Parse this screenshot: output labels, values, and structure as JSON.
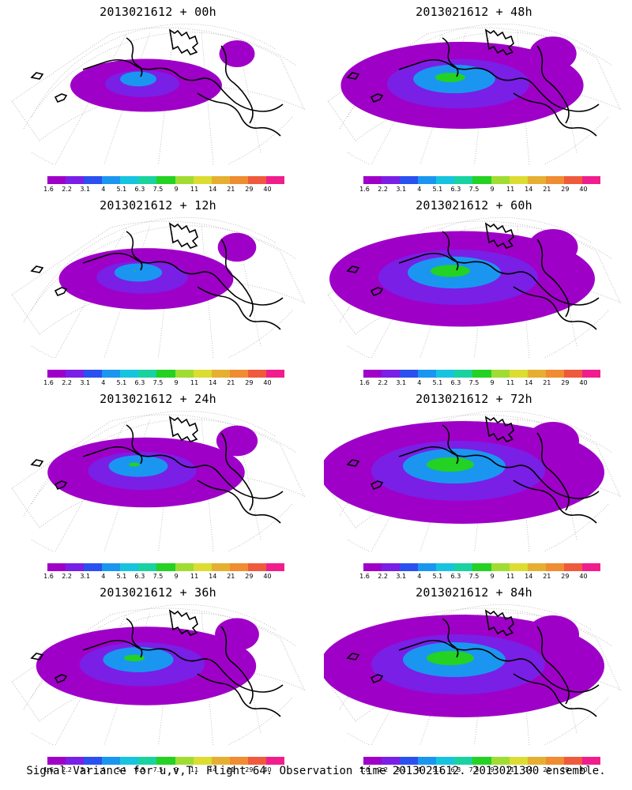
{
  "panels": [
    {
      "title": "2013021612 + 00h",
      "lead_hours": 0
    },
    {
      "title": "2013021612 + 48h",
      "lead_hours": 48
    },
    {
      "title": "2013021612 + 12h",
      "lead_hours": 12
    },
    {
      "title": "2013021612 + 60h",
      "lead_hours": 60
    },
    {
      "title": "2013021612 + 24h",
      "lead_hours": 24
    },
    {
      "title": "2013021612 + 72h",
      "lead_hours": 72
    },
    {
      "title": "2013021612 + 36h",
      "lead_hours": 36
    },
    {
      "title": "2013021612 + 84h",
      "lead_hours": 84
    }
  ],
  "colorbar": {
    "labels": [
      "1.6",
      "2.2",
      "3.1",
      "4",
      "5.1",
      "6.3",
      "7.5",
      "9",
      "11",
      "14",
      "21",
      "29",
      "40"
    ],
    "colors": [
      "#9f00c8",
      "#7a1fe6",
      "#2b50f0",
      "#1a96f0",
      "#16c4e0",
      "#19d2a0",
      "#23d223",
      "#a0dc32",
      "#dcdc32",
      "#e6af32",
      "#f08c32",
      "#f05a3c",
      "#f01e8c"
    ]
  },
  "footer": "Signal Variance for u,v,T. Flight 64. Observation time 2013021612. 2013021300 ensemble."
}
